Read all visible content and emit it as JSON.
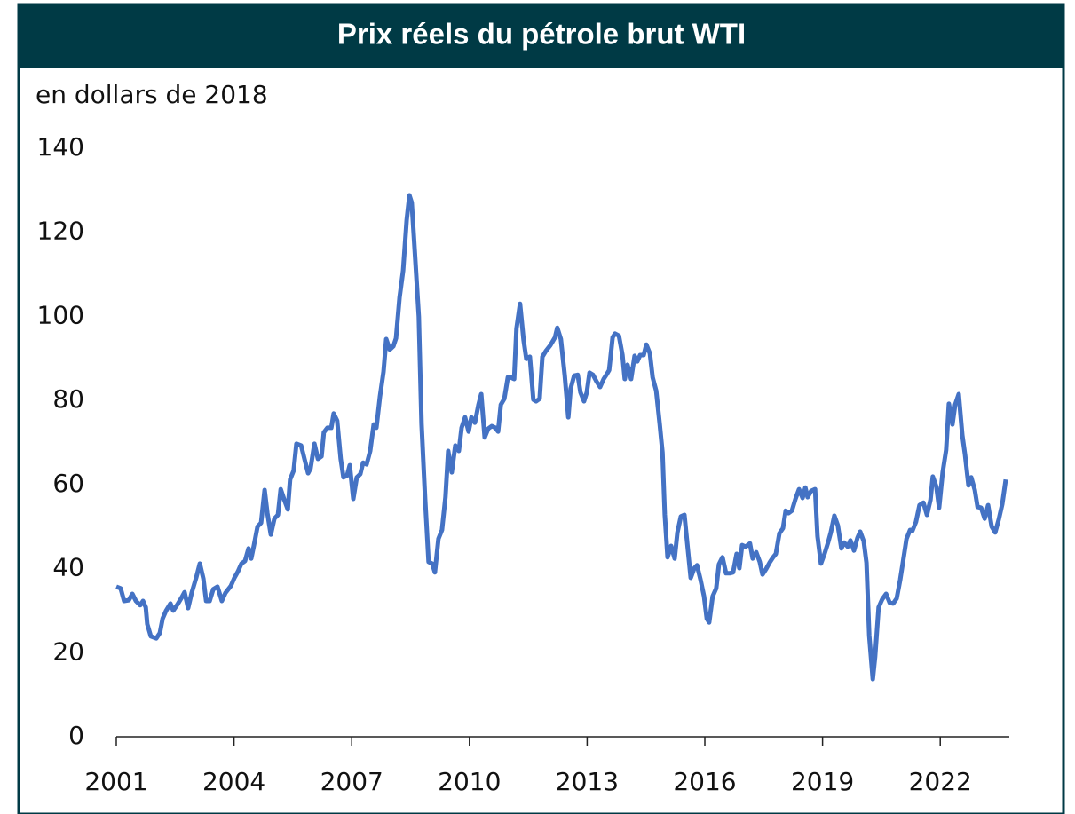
{
  "chart_data": {
    "type": "line",
    "title": "Prix réels du pétrole brut WTI",
    "subtitle": "en dollars de 2018",
    "xlim": [
      2001,
      2023.76
    ],
    "xticks": [
      2001,
      2004,
      2007,
      2010,
      2013,
      2016,
      2019,
      2022
    ],
    "ylim": [
      0,
      140
    ],
    "yticks": [
      0,
      20,
      40,
      60,
      80,
      100,
      120,
      140
    ],
    "grid": false,
    "x": [
      2001.0,
      2001.11,
      2001.2,
      2001.32,
      2001.41,
      2001.5,
      2001.61,
      2001.68,
      2001.75,
      2001.79,
      2001.88,
      2002.02,
      2002.11,
      2002.18,
      2002.27,
      2002.38,
      2002.45,
      2002.56,
      2002.67,
      2002.74,
      2002.83,
      2002.92,
      2003.04,
      2003.13,
      2003.22,
      2003.29,
      2003.38,
      2003.47,
      2003.58,
      2003.69,
      2003.78,
      2003.92,
      2004.01,
      2004.1,
      2004.19,
      2004.28,
      2004.37,
      2004.44,
      2004.51,
      2004.6,
      2004.69,
      2004.78,
      2004.85,
      2004.94,
      2005.03,
      2005.12,
      2005.19,
      2005.28,
      2005.37,
      2005.43,
      2005.52,
      2005.59,
      2005.71,
      2005.8,
      2005.89,
      2005.95,
      2006.05,
      2006.14,
      2006.23,
      2006.29,
      2006.38,
      2006.48,
      2006.54,
      2006.63,
      2006.72,
      2006.79,
      2006.88,
      2006.95,
      2007.04,
      2007.13,
      2007.22,
      2007.29,
      2007.38,
      2007.47,
      2007.56,
      2007.63,
      2007.72,
      2007.81,
      2007.88,
      2007.97,
      2008.06,
      2008.13,
      2008.22,
      2008.31,
      2008.4,
      2008.47,
      2008.53,
      2008.62,
      2008.71,
      2008.78,
      2008.87,
      2008.96,
      2009.05,
      2009.12,
      2009.21,
      2009.3,
      2009.39,
      2009.46,
      2009.55,
      2009.64,
      2009.73,
      2009.8,
      2009.89,
      2009.98,
      2010.05,
      2010.14,
      2010.23,
      2010.3,
      2010.39,
      2010.48,
      2010.57,
      2010.66,
      2010.73,
      2010.8,
      2010.89,
      2010.98,
      2011.05,
      2011.14,
      2011.2,
      2011.29,
      2011.38,
      2011.45,
      2011.54,
      2011.63,
      2011.7,
      2011.79,
      2011.86,
      2011.95,
      2012.06,
      2012.18,
      2012.24,
      2012.33,
      2012.43,
      2012.52,
      2012.58,
      2012.67,
      2012.76,
      2012.83,
      2012.92,
      2012.99,
      2013.06,
      2013.15,
      2013.24,
      2013.33,
      2013.42,
      2013.49,
      2013.56,
      2013.65,
      2013.71,
      2013.81,
      2013.9,
      2013.96,
      2014.03,
      2014.12,
      2014.21,
      2014.28,
      2014.35,
      2014.44,
      2014.51,
      2014.6,
      2014.67,
      2014.76,
      2014.85,
      2014.92,
      2014.98,
      2015.05,
      2015.14,
      2015.23,
      2015.3,
      2015.39,
      2015.48,
      2015.57,
      2015.64,
      2015.73,
      2015.8,
      2015.89,
      2015.98,
      2016.05,
      2016.11,
      2016.2,
      2016.29,
      2016.36,
      2016.45,
      2016.54,
      2016.63,
      2016.72,
      2016.81,
      2016.88,
      2016.95,
      2017.04,
      2017.15,
      2017.22,
      2017.31,
      2017.4,
      2017.47,
      2017.56,
      2017.65,
      2017.74,
      2017.81,
      2017.9,
      2017.99,
      2018.06,
      2018.13,
      2018.22,
      2018.31,
      2018.4,
      2018.49,
      2018.56,
      2018.62,
      2018.71,
      2018.81,
      2018.87,
      2018.96,
      2019.05,
      2019.14,
      2019.21,
      2019.3,
      2019.39,
      2019.48,
      2019.55,
      2019.64,
      2019.71,
      2019.8,
      2019.89,
      2019.96,
      2020.05,
      2020.12,
      2020.19,
      2020.28,
      2020.34,
      2020.43,
      2020.52,
      2020.62,
      2020.71,
      2020.8,
      2020.89,
      2020.98,
      2021.05,
      2021.14,
      2021.23,
      2021.29,
      2021.38,
      2021.47,
      2021.57,
      2021.66,
      2021.75,
      2021.81,
      2021.9,
      2021.97,
      2022.06,
      2022.15,
      2022.22,
      2022.31,
      2022.38,
      2022.47,
      2022.56,
      2022.63,
      2022.72,
      2022.79,
      2022.88,
      2022.95,
      2023.04,
      2023.13,
      2023.22,
      2023.31,
      2023.4,
      2023.49,
      2023.58,
      2023.67
    ],
    "series": [
      {
        "color": "#4472c4",
        "values": [
          35.7,
          35.3,
          32.3,
          32.5,
          34.0,
          32.3,
          31.3,
          32.3,
          30.8,
          26.8,
          23.9,
          23.4,
          24.7,
          28.1,
          30.0,
          31.7,
          30.0,
          31.5,
          33.2,
          34.4,
          30.6,
          34.2,
          38.0,
          41.2,
          37.6,
          32.3,
          32.3,
          35.1,
          35.7,
          32.3,
          34.2,
          35.9,
          37.8,
          39.3,
          41.2,
          41.8,
          44.8,
          42.4,
          45.6,
          50.0,
          50.9,
          58.7,
          53.2,
          48.1,
          51.9,
          52.8,
          58.9,
          56.4,
          54.1,
          61.2,
          63.3,
          69.7,
          69.3,
          65.9,
          62.7,
          63.8,
          69.7,
          66.1,
          66.7,
          72.4,
          73.5,
          73.5,
          76.9,
          75.2,
          66.1,
          61.7,
          62.1,
          64.6,
          56.6,
          61.7,
          62.5,
          65.2,
          64.8,
          68.0,
          74.3,
          73.5,
          80.9,
          86.8,
          94.6,
          92.1,
          92.9,
          94.8,
          104.5,
          110.9,
          122.9,
          128.8,
          127.1,
          113.6,
          99.9,
          74.3,
          56.6,
          41.6,
          41.2,
          39.1,
          47.1,
          49.2,
          57.0,
          68.0,
          62.9,
          69.3,
          68.0,
          73.5,
          76.0,
          72.6,
          76.0,
          74.7,
          79.0,
          81.5,
          71.2,
          73.3,
          73.9,
          73.5,
          72.6,
          79.0,
          80.4,
          85.5,
          85.5,
          85.1,
          97.1,
          103.0,
          94.4,
          89.9,
          90.4,
          80.2,
          79.8,
          80.4,
          90.4,
          91.8,
          93.1,
          95.0,
          97.3,
          94.6,
          85.9,
          76.0,
          82.8,
          85.9,
          86.1,
          81.9,
          79.8,
          81.9,
          86.6,
          86.1,
          84.5,
          83.2,
          85.1,
          86.1,
          87.2,
          95.0,
          95.9,
          95.4,
          90.8,
          85.1,
          88.5,
          85.1,
          90.6,
          89.3,
          90.8,
          90.8,
          93.3,
          91.2,
          85.5,
          82.3,
          74.3,
          67.6,
          52.8,
          42.7,
          45.4,
          42.4,
          48.6,
          52.4,
          52.8,
          44.3,
          37.8,
          40.1,
          40.8,
          37.4,
          33.4,
          28.1,
          27.2,
          33.4,
          35.3,
          41.0,
          42.7,
          38.9,
          38.9,
          39.1,
          43.5,
          40.1,
          45.6,
          45.2,
          46.0,
          42.4,
          43.9,
          41.6,
          38.6,
          39.9,
          41.4,
          42.7,
          43.5,
          48.4,
          49.6,
          53.8,
          53.2,
          53.8,
          56.6,
          58.9,
          56.8,
          59.3,
          57.0,
          58.5,
          58.9,
          47.7,
          41.2,
          43.5,
          46.2,
          48.6,
          52.6,
          50.3,
          44.8,
          46.2,
          45.2,
          46.7,
          44.3,
          47.3,
          48.8,
          46.5,
          41.4,
          24.1,
          13.7,
          19.0,
          30.8,
          32.7,
          34.0,
          31.9,
          31.7,
          32.9,
          37.4,
          41.6,
          47.1,
          49.2,
          49.0,
          51.1,
          55.1,
          55.7,
          52.8,
          56.4,
          61.9,
          59.5,
          54.5,
          62.9,
          68.2,
          79.2,
          74.3,
          79.0,
          81.5,
          71.8,
          67.1,
          59.8,
          61.7,
          58.7,
          54.7,
          54.5,
          51.9,
          55.1,
          50.0,
          48.6,
          51.7,
          55.3,
          61.2
        ]
      }
    ]
  }
}
